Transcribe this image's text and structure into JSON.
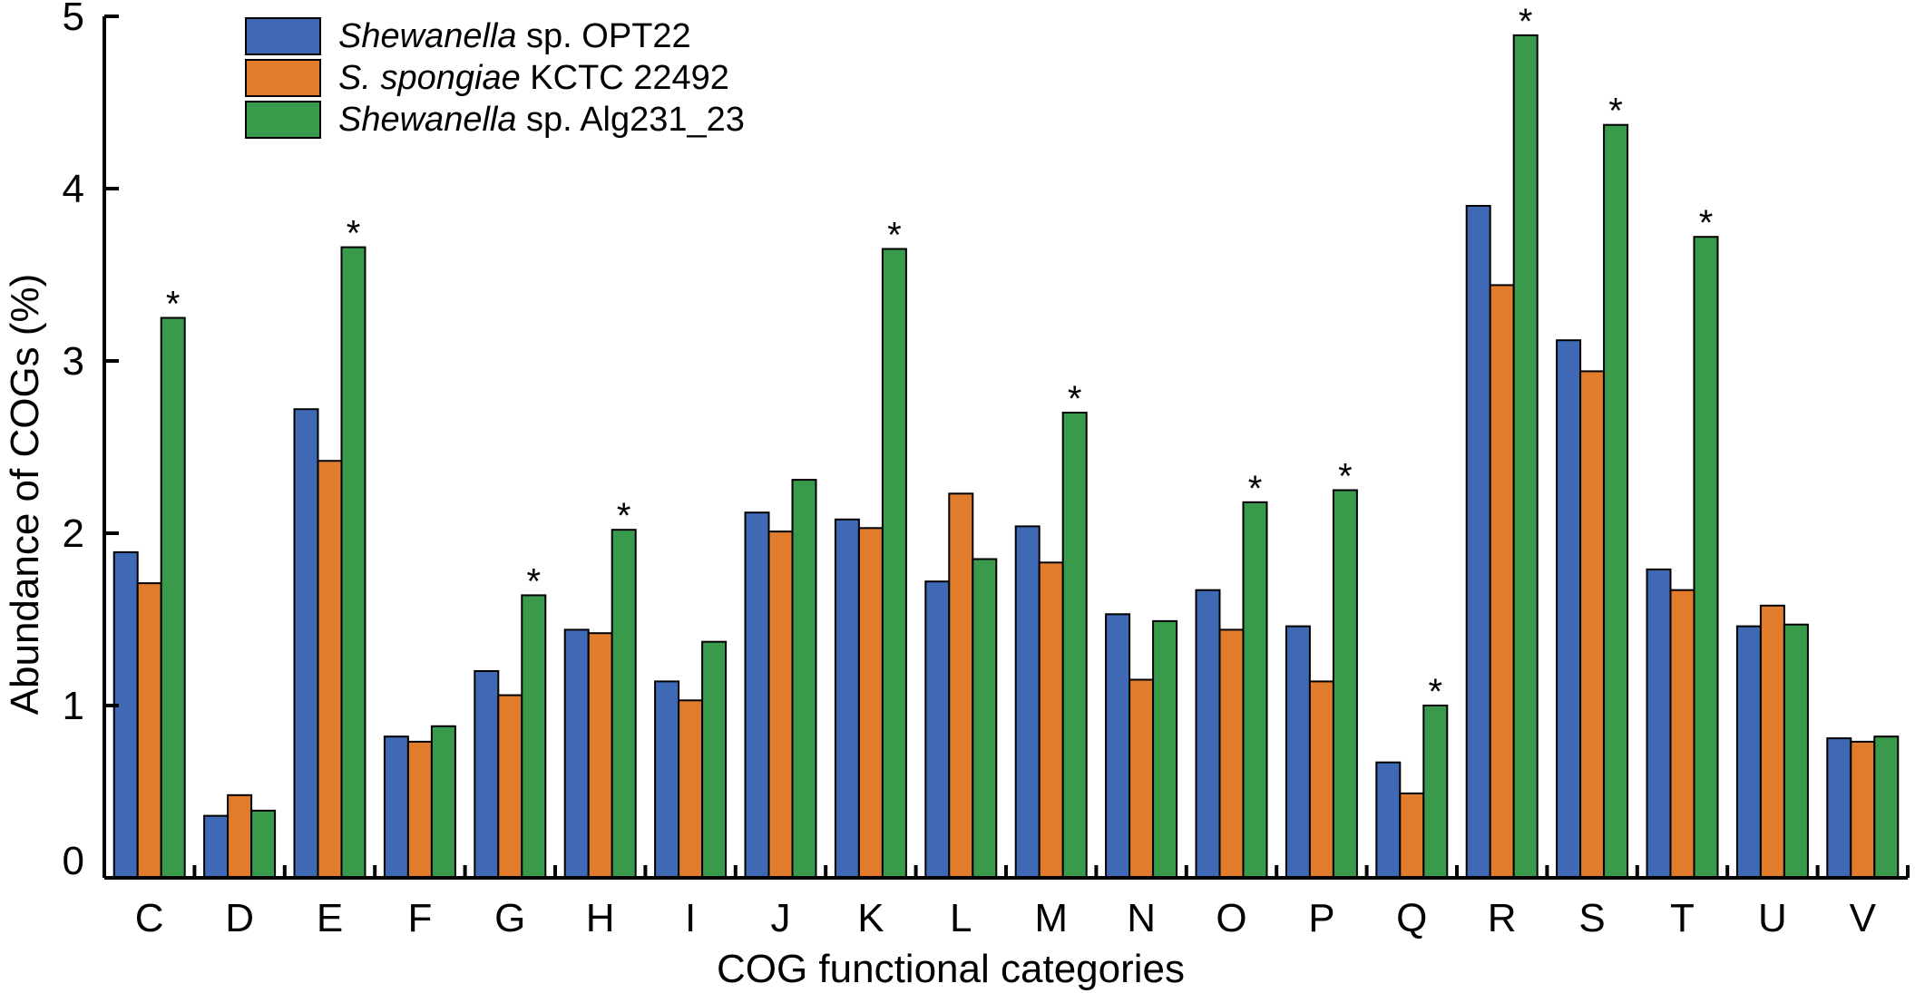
{
  "chart_data": {
    "type": "bar",
    "title": "",
    "xlabel": "COG functional categories",
    "ylabel": "Abundance of COGs (%)",
    "ylim": [
      0,
      5
    ],
    "yticks": [
      0,
      1,
      2,
      3,
      4,
      5
    ],
    "categories": [
      "C",
      "D",
      "E",
      "F",
      "G",
      "H",
      "I",
      "J",
      "K",
      "L",
      "M",
      "N",
      "O",
      "P",
      "Q",
      "R",
      "S",
      "T",
      "U",
      "V"
    ],
    "series": [
      {
        "name_italic": "Shewanella",
        "name_rest": " sp. OPT22",
        "color": "#3f69b5",
        "values": [
          1.89,
          0.36,
          2.72,
          0.82,
          1.2,
          1.44,
          1.14,
          2.12,
          2.08,
          1.72,
          2.04,
          1.53,
          1.67,
          1.46,
          0.67,
          3.9,
          3.12,
          1.79,
          1.46,
          0.81
        ]
      },
      {
        "name_italic": "S. spongiae",
        "name_rest": " KCTC 22492",
        "color": "#e07c2c",
        "values": [
          1.71,
          0.48,
          2.42,
          0.79,
          1.06,
          1.42,
          1.03,
          2.01,
          2.03,
          2.23,
          1.83,
          1.15,
          1.44,
          1.14,
          0.49,
          3.44,
          2.94,
          1.67,
          1.58,
          0.79
        ]
      },
      {
        "name_italic": "Shewanella",
        "name_rest": " sp. Alg231_23",
        "color": "#3a9a4c",
        "values": [
          3.25,
          0.39,
          3.66,
          0.88,
          1.64,
          2.02,
          1.37,
          2.31,
          3.65,
          1.85,
          2.7,
          1.49,
          2.18,
          2.25,
          1.0,
          4.89,
          4.37,
          3.72,
          1.47,
          0.82
        ]
      }
    ],
    "significant_marker": "*",
    "significant_categories": [
      "C",
      "E",
      "G",
      "H",
      "K",
      "M",
      "O",
      "P",
      "Q",
      "R",
      "S",
      "T"
    ],
    "legend_position": "top-left"
  }
}
